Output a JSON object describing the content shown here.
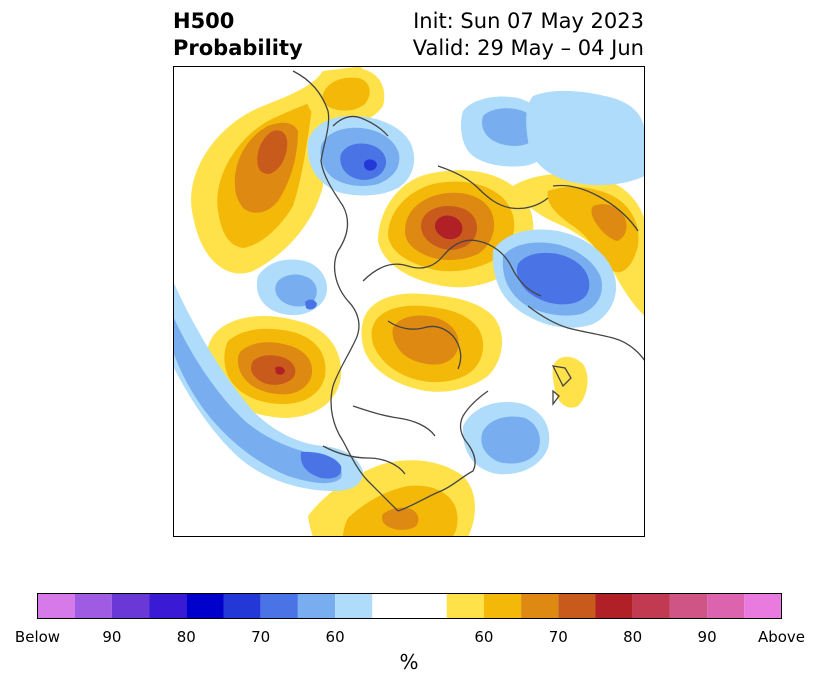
{
  "title": {
    "left_line1": "H500",
    "left_line2": "Probability",
    "right_line1": "Init: Sun 07 May 2023",
    "right_line2": "Valid: 29 May – 04 Jun"
  },
  "colorbar": {
    "colors": [
      "#d57ae8",
      "#9f5ce3",
      "#6b38d8",
      "#3a1ad4",
      "#0000cc",
      "#2438d8",
      "#4a74e6",
      "#78aef0",
      "#aedcfa",
      "#ffffff",
      "#ffe24a",
      "#f3b808",
      "#de8a12",
      "#c85a1c",
      "#b12026",
      "#c23a52",
      "#ce5585",
      "#dc63ad",
      "#e87ae0"
    ],
    "tick_labels": [
      "Below",
      "90",
      "80",
      "70",
      "60",
      "60",
      "70",
      "80",
      "90",
      "Above"
    ],
    "unit": "%"
  },
  "map": {
    "palette": {
      "below_60": "#aedcfa",
      "below_70": "#78aef0",
      "below_80": "#4a74e6",
      "below_90": "#2438d8",
      "above_60": "#ffe24a",
      "above_65": "#f3b808",
      "above_70": "#de8a12",
      "above_75": "#c85a1c",
      "above_80": "#b12026",
      "coastline": "#444444"
    }
  }
}
